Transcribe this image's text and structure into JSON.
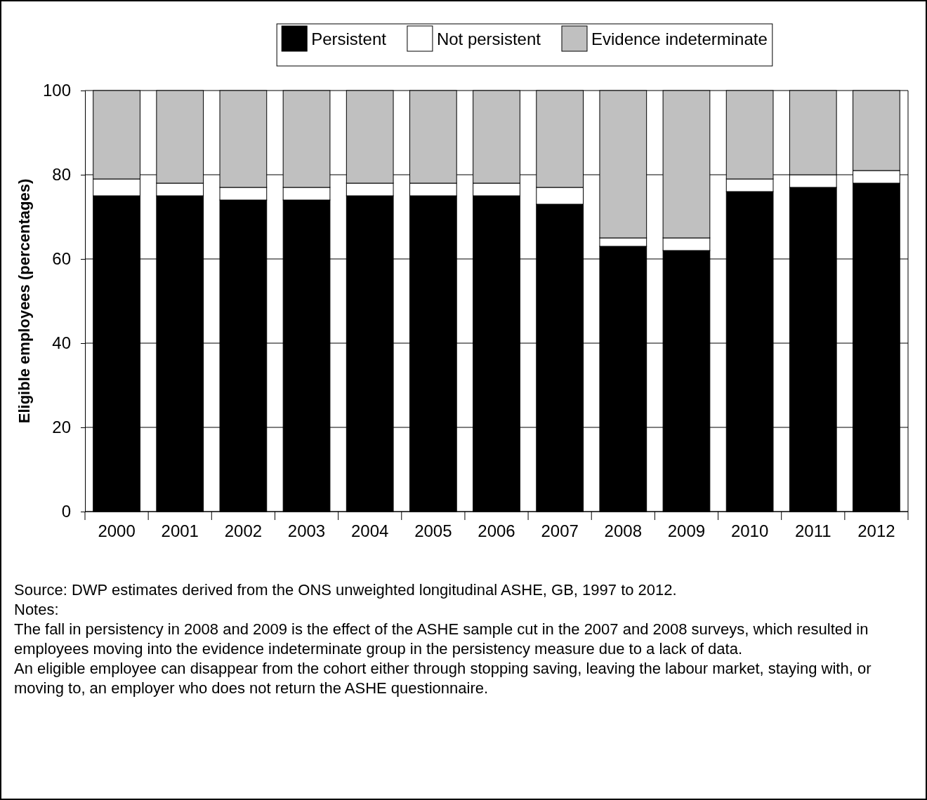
{
  "chart_data": {
    "type": "bar",
    "stacked": true,
    "ylabel": "Eligible employees (percentages)",
    "categories": [
      "2000",
      "2001",
      "2002",
      "2003",
      "2004",
      "2005",
      "2006",
      "2007",
      "2008",
      "2009",
      "2010",
      "2011",
      "2012"
    ],
    "series": [
      {
        "name": "Persistent",
        "color": "#000000",
        "values": [
          75,
          75,
          74,
          74,
          75,
          75,
          75,
          73,
          63,
          62,
          76,
          77,
          78
        ]
      },
      {
        "name": "Not persistent",
        "color": "#ffffff",
        "values": [
          4,
          3,
          3,
          3,
          3,
          3,
          3,
          4,
          2,
          3,
          3,
          3,
          3
        ]
      },
      {
        "name": "Evidence indeterminate",
        "color": "#c0c0c0",
        "values": [
          21,
          22,
          23,
          23,
          22,
          22,
          22,
          23,
          35,
          35,
          21,
          20,
          19
        ]
      }
    ],
    "ylim": [
      0,
      100
    ],
    "yticks": [
      0,
      20,
      40,
      60,
      80,
      100
    ],
    "grid": "y",
    "legend": "top",
    "annotations": [
      "Source: DWP estimates derived from the ONS unweighted longitudinal ASHE, GB, 1997 to 2012.",
      "Notes:",
      "The fall in persistency in 2008 and 2009 is the effect of the ASHE sample cut in the 2007 and 2008 surveys, which resulted in employees moving into the evidence indeterminate group in the persistency measure due to a lack of data.",
      "An eligible employee can disappear from the cohort either through stopping saving, leaving the labour market, staying with, or moving to, an employer who does not return the ASHE questionnaire."
    ]
  }
}
